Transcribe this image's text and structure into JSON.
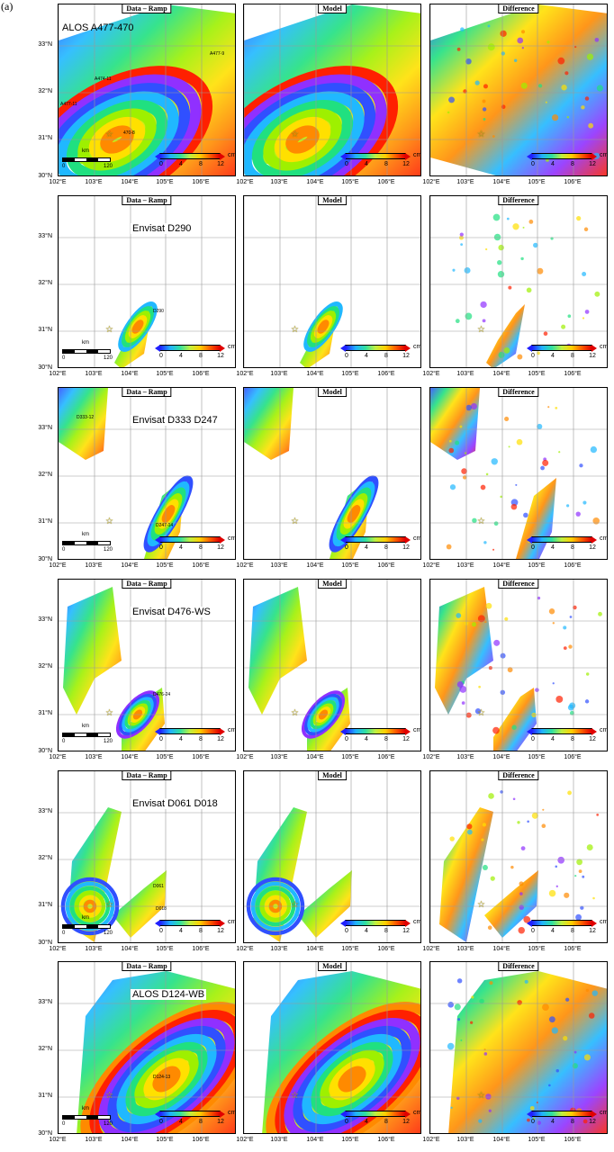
{
  "figure_label": "(a)",
  "column_titles": [
    "Data – Ramp",
    "Model",
    "Difference"
  ],
  "rows": [
    {
      "track": "ALOS A477-470",
      "frames": [
        "A477-9",
        "A474-11",
        "A477-11",
        "470-8"
      ]
    },
    {
      "track": "Envisat D290",
      "frames": [
        "D290"
      ]
    },
    {
      "track": "Envisat D333 D247",
      "frames": [
        "D333-12",
        "D247-14"
      ]
    },
    {
      "track": "Envisat D476-WS",
      "frames": [
        "D476-24"
      ]
    },
    {
      "track": "Envisat D061 D018",
      "frames": [
        "D061",
        "D018"
      ]
    },
    {
      "track": "ALOS D124-WB",
      "frames": [
        "D124-13"
      ]
    }
  ],
  "lat_labels": [
    "33°N",
    "32°N",
    "31°N",
    "30°N"
  ],
  "lon_labels": [
    "102°E",
    "103°E",
    "104°E",
    "105°E",
    "106°E"
  ],
  "scale": {
    "unit": "km",
    "zero": "0",
    "max": "120"
  },
  "colorbar": {
    "unit": "cm",
    "ticks": [
      "0",
      "4",
      "8",
      "12"
    ]
  },
  "epicenter_symbol": "☆"
}
